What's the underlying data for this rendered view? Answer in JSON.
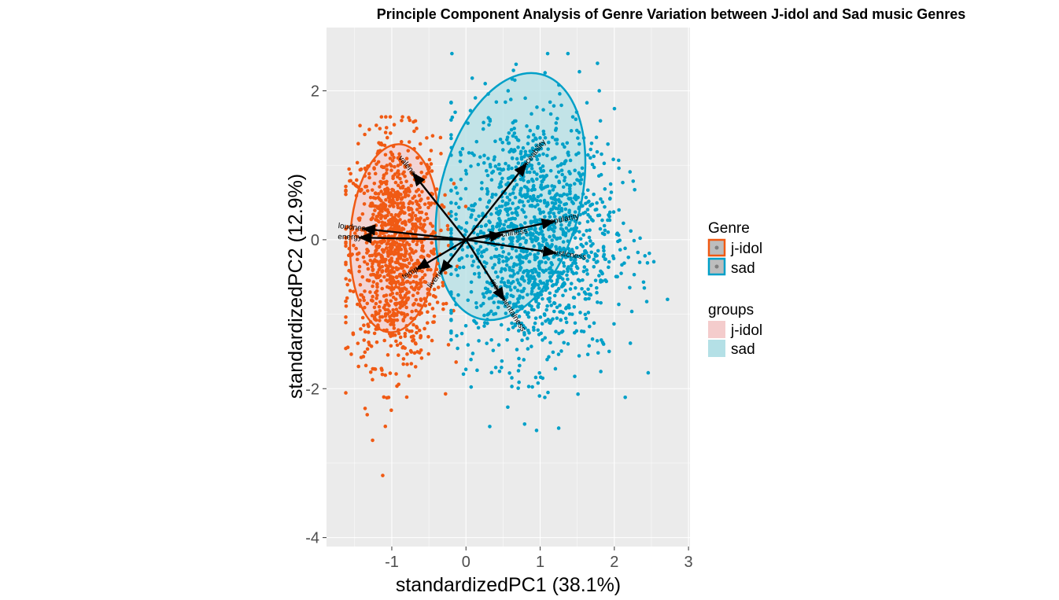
{
  "chart_data": {
    "type": "scatter",
    "title": "Principle Component Analysis of Genre Variation between J-idol and Sad music Genres",
    "xlabel": "standardizedPC1 (38.1%)",
    "ylabel": "standardizedPC2 (12.9%)",
    "xlim": [
      -1.88,
      3.02
    ],
    "ylim": [
      -4.12,
      2.85
    ],
    "x_ticks": [
      -1,
      0,
      1,
      2,
      3
    ],
    "y_ticks": [
      -4,
      -2,
      0,
      2
    ],
    "x_tick_labels": [
      "-1",
      "0",
      "1",
      "2",
      "3"
    ],
    "y_tick_labels": [
      "-4",
      "-2",
      "0",
      "2"
    ],
    "grid": true,
    "legend_position": "right",
    "colors": {
      "j-idol": "#f05a14",
      "sad": "#00a0c8",
      "j-idol-fill": "#f4cccc",
      "sad-fill": "#b4e0e6",
      "panel": "#ebebeb",
      "grid": "#ffffff",
      "arrow": "#000000"
    },
    "series": [
      {
        "name": "j-idol",
        "points": {
          "count": 1150,
          "center": [
            -0.95,
            -0.15
          ],
          "sd": [
            0.3,
            0.75
          ],
          "x_range": [
            -1.62,
            0.35
          ],
          "y_range": [
            -3.85,
            1.65
          ]
        },
        "ellipse": {
          "center": [
            -0.96,
            0.02
          ],
          "semi_axes": [
            1.27,
            0.6
          ],
          "angle_deg": 87
        }
      },
      {
        "name": "sad",
        "points": {
          "count": 1450,
          "center": [
            0.9,
            0.05
          ],
          "sd": [
            0.55,
            0.85
          ],
          "x_range": [
            -0.2,
            2.8
          ],
          "y_range": [
            -3.2,
            2.5
          ]
        },
        "ellipse": {
          "center": [
            0.6,
            0.58
          ],
          "semi_axes": [
            1.7,
            0.95
          ],
          "angle_deg": 76
        }
      }
    ],
    "loadings": [
      {
        "label": "loudness",
        "x": -1.4,
        "y": 0.15
      },
      {
        "label": "energy",
        "x": -1.45,
        "y": 0.03
      },
      {
        "label": "valence",
        "x": -0.72,
        "y": 0.9
      },
      {
        "label": "tempo",
        "x": -0.67,
        "y": -0.4
      },
      {
        "label": "liveness",
        "x": -0.35,
        "y": -0.45
      },
      {
        "label": "danceability",
        "x": 0.82,
        "y": 1.03
      },
      {
        "label": "popularity",
        "x": 1.2,
        "y": 0.25
      },
      {
        "label": "speechiness",
        "x": 0.5,
        "y": 0.07
      },
      {
        "label": "acousticness",
        "x": 1.22,
        "y": -0.18
      },
      {
        "label": "instrumentalness",
        "x": 0.52,
        "y": -0.82
      }
    ]
  },
  "legend": {
    "genre": {
      "title": "Genre",
      "items": [
        "j-idol",
        "sad"
      ]
    },
    "groups": {
      "title": "groups",
      "items": [
        "j-idol",
        "sad"
      ]
    }
  }
}
